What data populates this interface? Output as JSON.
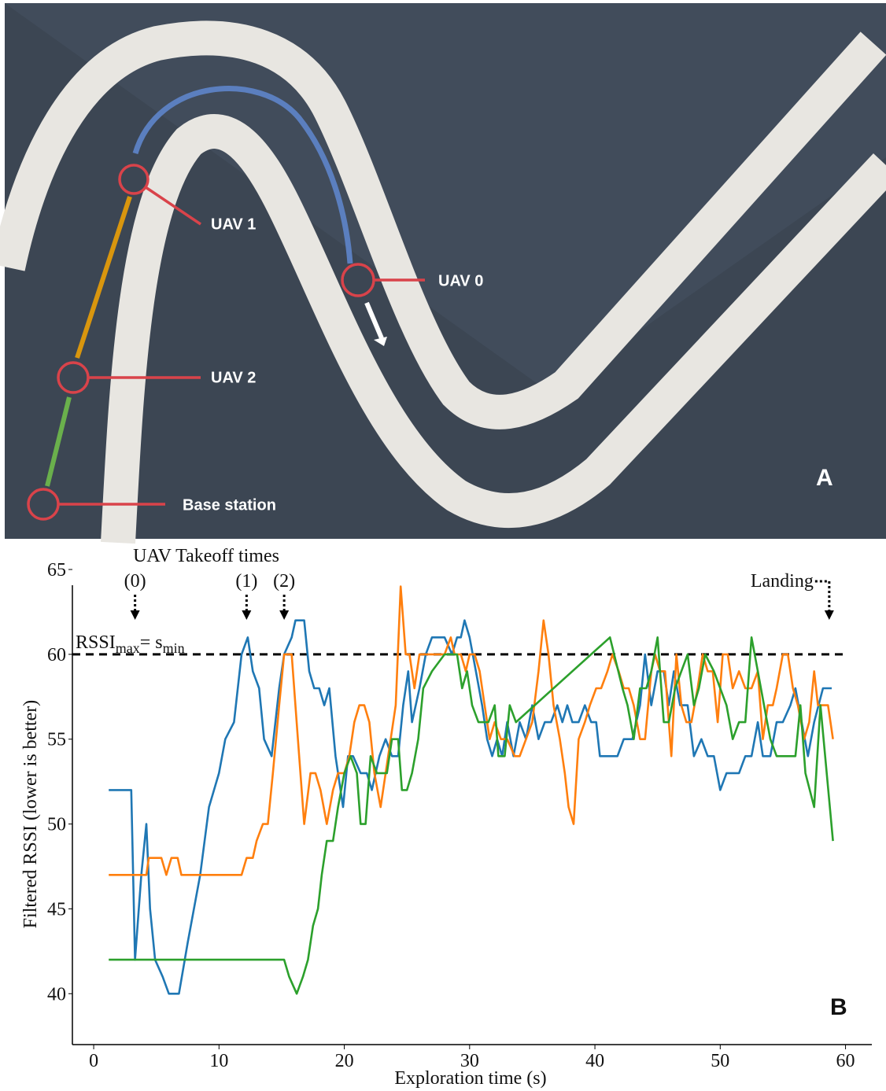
{
  "photo": {
    "labels": [
      "UAV 1",
      "UAV 0",
      "UAV 2",
      "Base station"
    ],
    "panel": "A"
  },
  "chart_data": {
    "type": "line",
    "panel": "B",
    "title": "UAV Takeoff times",
    "xlabel": "Exploration time (s)",
    "ylabel": "Filtered RSSI (lower is better)",
    "xlim": [
      -1.7,
      62.1
    ],
    "ylim": [
      37,
      65
    ],
    "xticks": [
      0,
      10,
      20,
      30,
      40,
      50,
      60
    ],
    "yticks": [
      40,
      45,
      50,
      55,
      60,
      65
    ],
    "threshold": {
      "value": 60,
      "label": [
        "RSSI",
        "max",
        "= s",
        "min"
      ]
    },
    "annotations": [
      {
        "text": "(0)",
        "x": 3.3
      },
      {
        "text": "(1)",
        "x": 12.2
      },
      {
        "text": "(2)",
        "x": 15.2
      },
      {
        "text": "Landing",
        "x": 58.7
      }
    ],
    "series": [
      {
        "color": "#1f77b4",
        "x": [
          1.2,
          3,
          3.3,
          3.8,
          4.2,
          4.5,
          4.9,
          5.5,
          6,
          6.8,
          7.5,
          8.5,
          9.2,
          10,
          10.5,
          11.2,
          11.8,
          12.3,
          12.7,
          13.2,
          13.6,
          14.2,
          14.8,
          15.2,
          15.8,
          16.1,
          16.8,
          17.2,
          17.6,
          18,
          18.4,
          18.8,
          19.3,
          19.9,
          20.3,
          20.7,
          21.3,
          21.8,
          22.2,
          22.8,
          23.3,
          23.8,
          24.3,
          24.7,
          25.1,
          25.4,
          26,
          26.5,
          27,
          28,
          28.6,
          29,
          29.3,
          29.6,
          30,
          30.5,
          31,
          31.4,
          31.8,
          32.2,
          32.6,
          33,
          33.5,
          34,
          34.5,
          35,
          35.5,
          36,
          36.5,
          37,
          37.4,
          37.8,
          38.2,
          38.7,
          39.2,
          39.7,
          40.1,
          40.4,
          41,
          41.8,
          42.3,
          43,
          43.6,
          44,
          44.5,
          45,
          45.5,
          45.9,
          46.3,
          46.8,
          47.4,
          47.9,
          48.5,
          49,
          49.5,
          50,
          50.5,
          51,
          51.5,
          52,
          52.5,
          53,
          53.4,
          54,
          54.5,
          55,
          55.6,
          56,
          56.5,
          57,
          57.5,
          58.2,
          58.9
        ],
        "values": [
          52,
          52,
          42,
          47,
          50,
          45,
          42,
          41,
          40,
          40,
          43,
          47,
          51,
          53,
          55,
          56,
          60,
          61,
          59,
          58,
          55,
          54,
          58,
          60,
          61,
          62,
          62,
          59,
          58,
          58,
          57,
          58,
          54,
          51,
          54,
          54,
          53,
          53,
          52,
          54,
          55,
          54,
          54,
          57,
          59,
          56,
          58,
          60,
          61,
          61,
          60,
          61,
          61,
          62,
          61,
          59,
          57,
          55,
          54,
          55,
          54,
          56,
          54,
          56,
          55,
          57,
          55,
          56,
          56,
          57,
          56,
          57,
          56,
          56,
          57,
          56,
          56,
          54,
          54,
          54,
          55,
          55,
          57,
          60,
          57,
          59,
          59,
          57,
          59,
          57,
          57,
          54,
          55,
          54,
          54,
          52,
          53,
          53,
          53,
          54,
          54,
          56,
          54,
          54,
          56,
          56,
          57,
          58,
          56,
          54,
          56,
          58,
          58
        ]
      },
      {
        "color": "#ff7f0e",
        "x": [
          1.2,
          4.2,
          4.4,
          5.4,
          5.8,
          6.2,
          6.7,
          7,
          7.5,
          8.5,
          10,
          11.8,
          12.2,
          12.7,
          13,
          13.5,
          13.9,
          14.3,
          14.8,
          15.2,
          15.8,
          16.3,
          16.8,
          17.3,
          17.7,
          18.1,
          18.6,
          19.1,
          19.5,
          20,
          20.4,
          20.8,
          21.2,
          21.6,
          22,
          22.4,
          22.9,
          23.3,
          23.7,
          24.1,
          24.5,
          24.9,
          25.2,
          25.6,
          26,
          26.5,
          27,
          27.5,
          28,
          28.5,
          28.8,
          29.3,
          29.7,
          30,
          30.4,
          30.8,
          31.2,
          31.6,
          32,
          32.5,
          33,
          33.6,
          34,
          34.5,
          35,
          35.5,
          35.9,
          36.3,
          36.7,
          37.2,
          37.6,
          37.9,
          38.3,
          38.7,
          39.2,
          39.6,
          40.1,
          40.5,
          41,
          41.4,
          41.9,
          42.3,
          42.7,
          43.1,
          43.6,
          44,
          44.5,
          44.8,
          45.2,
          45.6,
          46.1,
          46.5,
          46.9,
          47.3,
          47.7,
          48.2,
          48.6,
          49,
          49.4,
          49.8,
          50.2,
          50.6,
          51,
          51.5,
          52,
          52.5,
          53,
          53.4,
          53.8,
          54.2,
          54.5,
          55,
          55.4,
          55.8,
          56.2,
          56.7,
          57.1,
          57.5,
          57.8,
          58.2,
          58.6,
          59
        ],
        "values": [
          47,
          47,
          48,
          48,
          47,
          48,
          48,
          47,
          47,
          47,
          47,
          47,
          48,
          48,
          49,
          50,
          50,
          53,
          57,
          60,
          60,
          55,
          50,
          53,
          53,
          52,
          50,
          52,
          53,
          53,
          54,
          56,
          57,
          57,
          56,
          53,
          51,
          53,
          55,
          57,
          64,
          60,
          60,
          58,
          60,
          60,
          60,
          60,
          60,
          61,
          60,
          60,
          59,
          60,
          60,
          59,
          57,
          55,
          56,
          55,
          55,
          54,
          54,
          55,
          56,
          59,
          62,
          60,
          57,
          55,
          53,
          51,
          50,
          55,
          56,
          57,
          58,
          58,
          59,
          60,
          59,
          58,
          58,
          57,
          55,
          55,
          59,
          60,
          59,
          59,
          54,
          60,
          57,
          56,
          56,
          58,
          60,
          59,
          59,
          56,
          60,
          60,
          58,
          59,
          58,
          58,
          59,
          55,
          57,
          57,
          58,
          60,
          60,
          58,
          57,
          55,
          56,
          59,
          57,
          57,
          57,
          55
        ]
      },
      {
        "color": "#2ca02c",
        "x": [
          1.2,
          15.2,
          15.6,
          16.2,
          16.7,
          17.1,
          17.5,
          17.9,
          18.2,
          18.6,
          19.1,
          19.5,
          20,
          20.5,
          21,
          21.3,
          21.7,
          22.1,
          22.6,
          23,
          23.4,
          23.8,
          24.3,
          24.6,
          25,
          25.4,
          25.9,
          26.3,
          27,
          28,
          29,
          29.4,
          29.8,
          30.2,
          30.7,
          31.5,
          32,
          32.3,
          32.8,
          33.2,
          33.7,
          41.2,
          42.2,
          42.6,
          43.1,
          43.6,
          44.1,
          44.5,
          45,
          45.5,
          45.9,
          46.4,
          46.9,
          47.4,
          47.9,
          48.3,
          48.8,
          49.5,
          50,
          50.5,
          51,
          51.5,
          52,
          52.5,
          53,
          53.5,
          54,
          54.5,
          55,
          56,
          56.4,
          56.8,
          57.5,
          58,
          59
        ],
        "values": [
          42,
          42,
          41,
          40,
          41,
          42,
          44,
          45,
          47,
          49,
          49,
          51,
          53,
          54,
          53,
          50,
          50,
          54,
          53,
          53,
          53,
          55,
          55,
          52,
          52,
          53,
          55,
          58,
          59,
          60,
          60,
          58,
          59,
          57,
          56,
          56,
          57,
          54,
          54,
          57,
          56,
          61,
          58,
          57,
          55,
          58,
          58,
          59,
          61,
          56,
          56,
          58,
          59,
          60,
          57,
          58,
          60,
          59,
          58,
          57,
          55,
          56,
          56,
          61,
          59,
          57,
          55,
          54,
          54,
          54,
          57,
          53,
          51,
          57,
          49
        ]
      }
    ]
  }
}
